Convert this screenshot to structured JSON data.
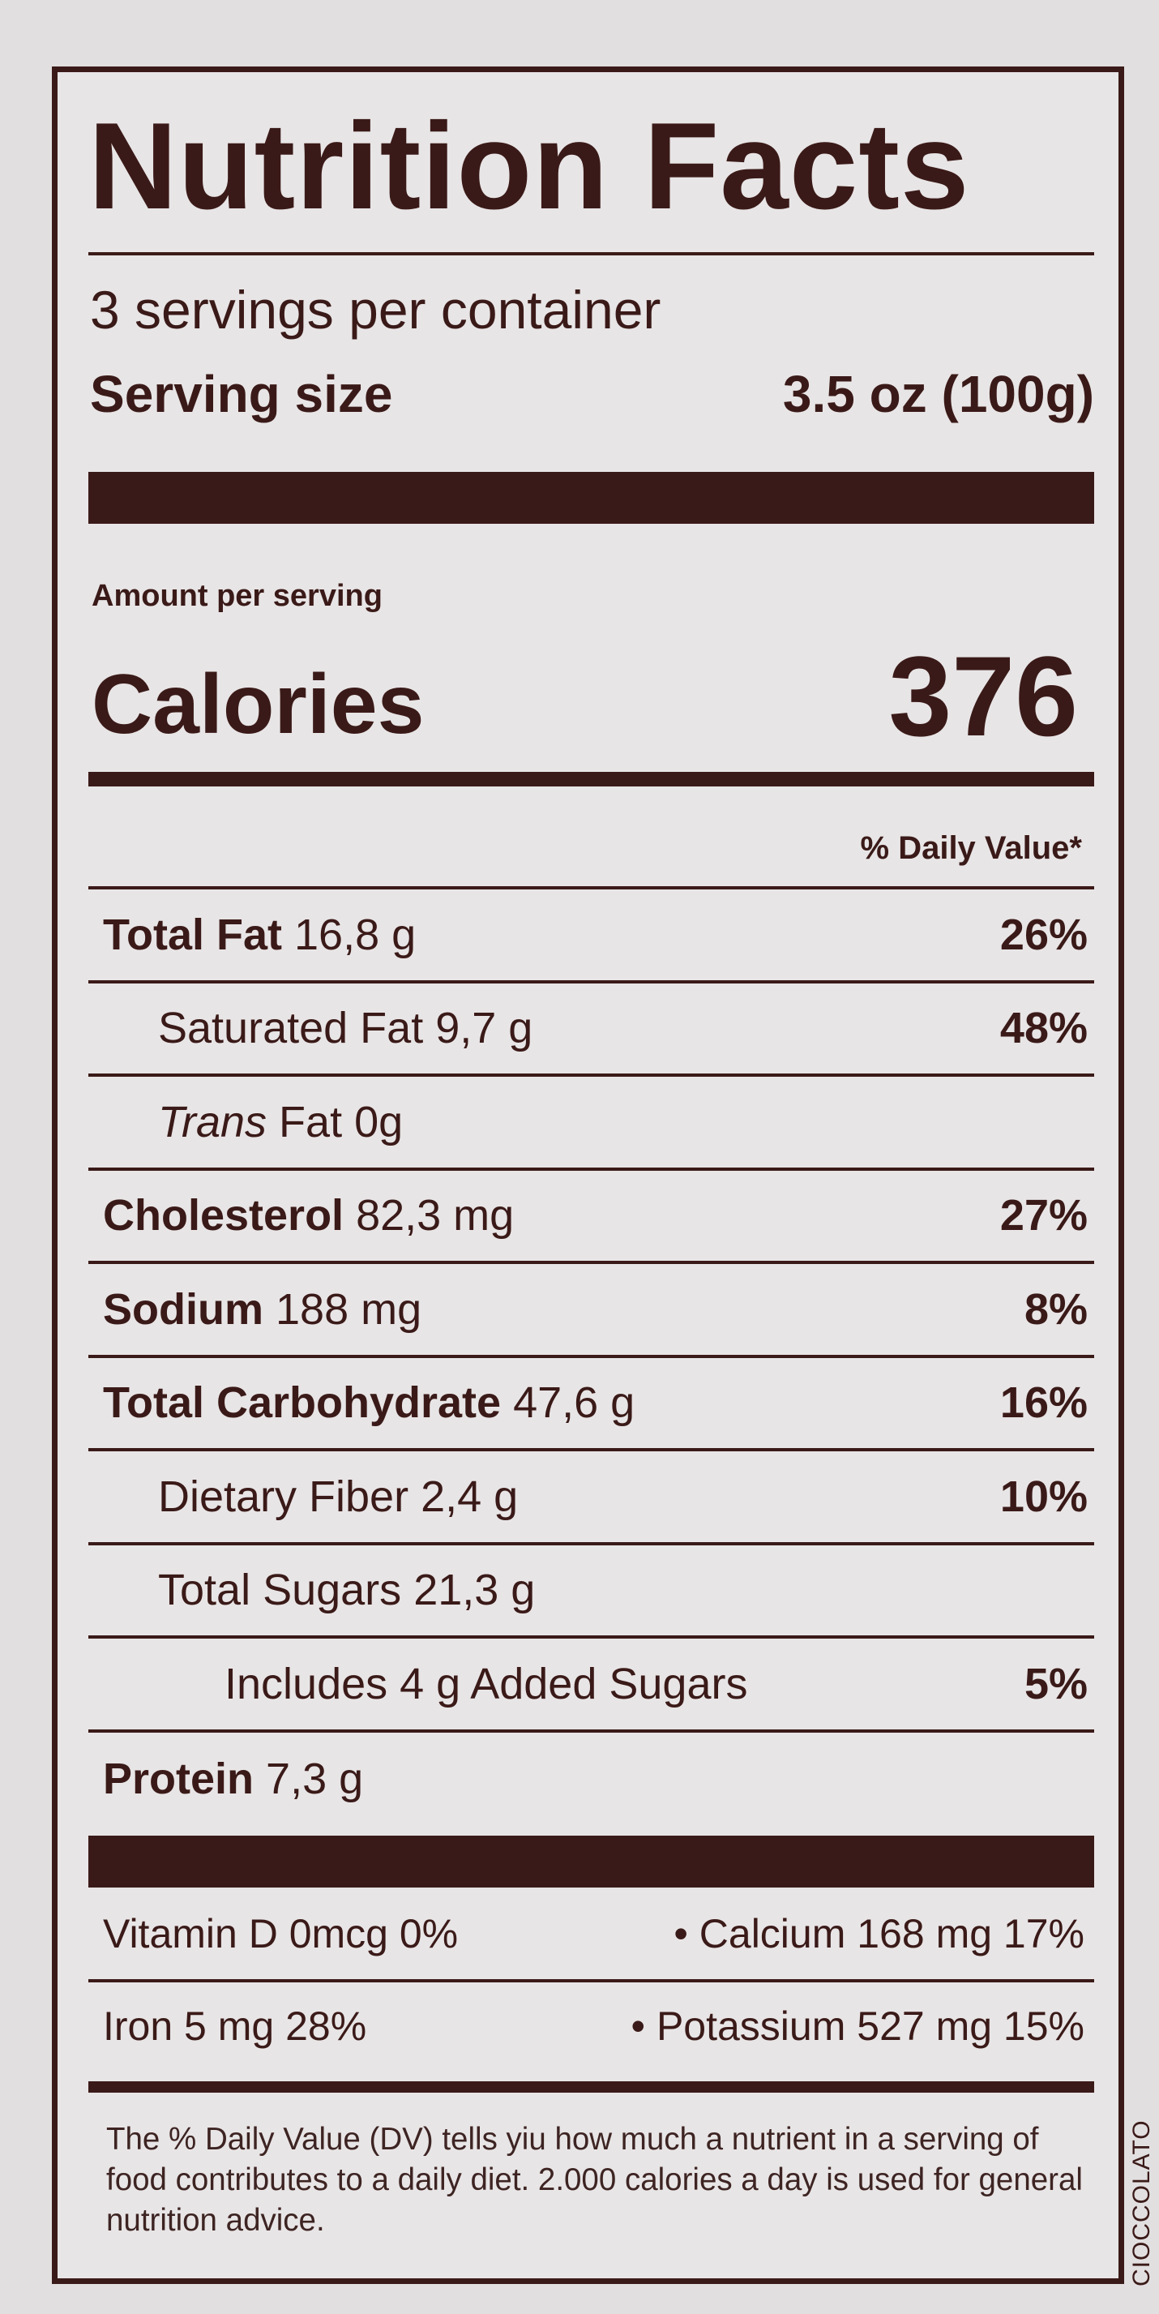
{
  "label": {
    "title": "Nutrition Facts",
    "servings_per_container": "3 servings per container",
    "serving_size_label": "Serving size",
    "serving_size_value": "3.5 oz (100g)",
    "amount_per_serving": "Amount per serving",
    "calories_label": "Calories",
    "calories_value": "376",
    "daily_value_header": "% Daily Value*",
    "nutrients": [
      {
        "name": "Total Fat",
        "amount": "16,8 g",
        "dv": "26%"
      },
      {
        "name": "Saturated Fat",
        "amount": "9,7 g",
        "dv": "48%"
      },
      {
        "name": "Trans",
        "name_rest": "Fat 0g"
      },
      {
        "name": "Cholesterol",
        "amount": "82,3 mg",
        "dv": "27%"
      },
      {
        "name": "Sodium",
        "amount": "188 mg",
        "dv": "8%"
      },
      {
        "name": "Total Carbohydrate",
        "amount": "47,6 g",
        "dv": "16%"
      },
      {
        "name": "Dietary Fiber",
        "amount": "2,4 g",
        "dv": "10%"
      },
      {
        "name": "Total Sugars",
        "amount": "21,3 g"
      },
      {
        "name": "Includes 4 g Added Sugars",
        "dv": "5%"
      },
      {
        "name": "Protein",
        "amount": "7,3 g"
      }
    ],
    "vitamins": [
      {
        "left": "Vitamin D 0mcg 0%",
        "right": "• Calcium 168 mg 17%"
      },
      {
        "left": "Iron 5 mg 28%",
        "right": "• Potassium 527 mg 15%"
      }
    ],
    "footnote": "The % Daily Value (DV) tells yiu how much a nutrient in a serving of food contributes to a daily diet. 2.000 calories a day is used for general nutrition advice.",
    "side_text": "CIOCCOLATO"
  },
  "colors": {
    "ink": "#3a1a18",
    "paper": "#e8e5e6"
  }
}
